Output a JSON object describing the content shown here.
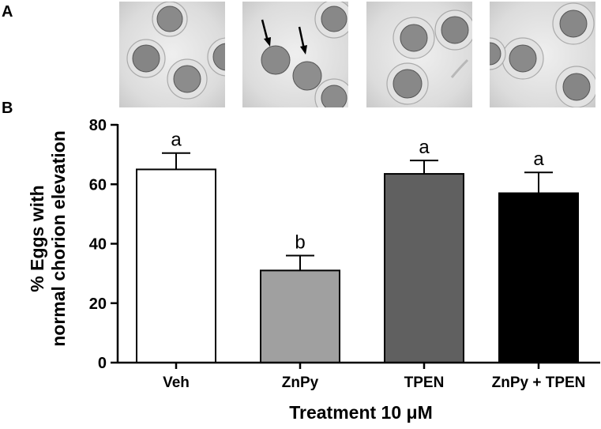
{
  "panels": {
    "a": "A",
    "b": "B"
  },
  "micrographs": [
    {
      "id": "veh",
      "arrows": 0
    },
    {
      "id": "znpy",
      "arrows": 2
    },
    {
      "id": "tpen",
      "arrows": 0
    },
    {
      "id": "znpy_tpen",
      "arrows": 0
    }
  ],
  "chart_data": {
    "type": "bar",
    "categories": [
      "Veh",
      "ZnPy",
      "TPEN",
      "ZnPy + TPEN"
    ],
    "values": [
      65,
      31,
      63.5,
      57
    ],
    "errors": [
      5.5,
      5,
      4.5,
      7
    ],
    "significance": [
      "a",
      "b",
      "a",
      "a"
    ],
    "bar_colors": [
      "#ffffff",
      "#a0a0a0",
      "#606060",
      "#000000"
    ],
    "ylabel_line1": "% Eggs with",
    "ylabel_line2": "normal chorion elevation",
    "xlabel": "Treatment 10 μM",
    "ylim": [
      0,
      80
    ],
    "yticks": [
      0,
      20,
      40,
      60,
      80
    ],
    "grid": false
  }
}
